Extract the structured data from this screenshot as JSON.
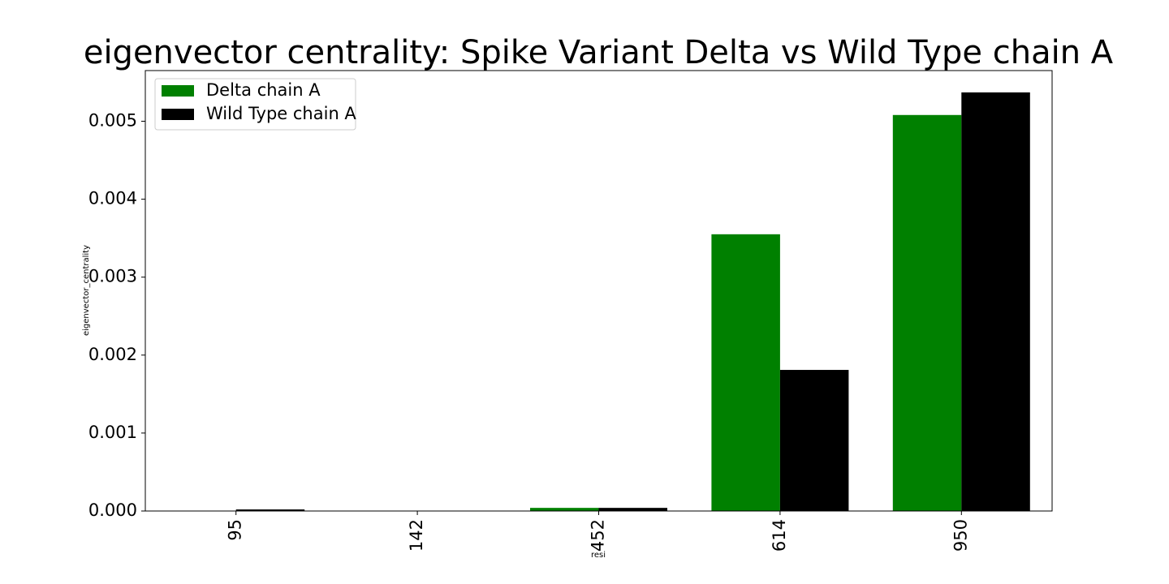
{
  "chart_data": {
    "type": "bar",
    "title": "eigenvector centrality: Spike Variant Delta vs Wild Type chain A",
    "xlabel": "resi",
    "ylabel": "eigenvector_centrality",
    "categories": [
      "95",
      "142",
      "452",
      "614",
      "950"
    ],
    "series": [
      {
        "name": "Delta chain A",
        "color": "#008000",
        "values": [
          0.0,
          0.0,
          4e-05,
          0.00355,
          0.00508
        ]
      },
      {
        "name": "Wild Type chain A",
        "color": "#000000",
        "values": [
          2e-05,
          0.0,
          4e-05,
          0.00181,
          0.00537
        ]
      }
    ],
    "ylim": [
      0,
      0.00565
    ],
    "yticks": [
      "0.000",
      "0.001",
      "0.002",
      "0.003",
      "0.004",
      "0.005"
    ],
    "grid": false,
    "legend_position": "top-left"
  }
}
